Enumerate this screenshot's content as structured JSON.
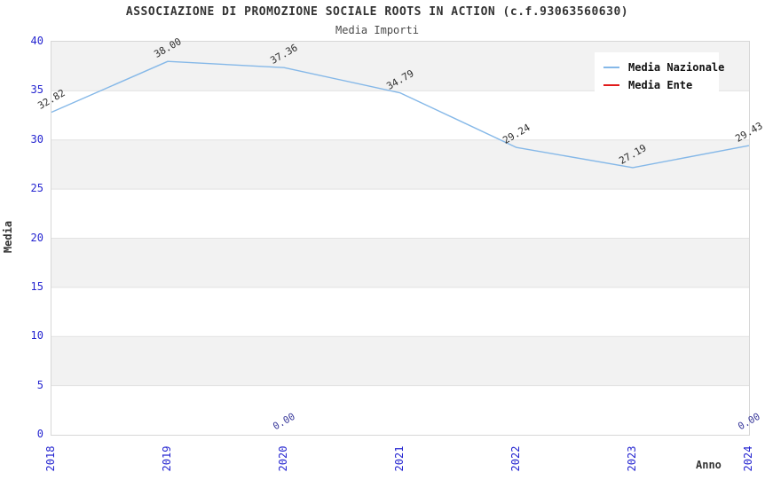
{
  "header": {
    "title": "ASSOCIAZIONE DI PROMOZIONE SOCIALE ROOTS IN ACTION (c.f.93063560630)",
    "subtitle": "Media Importi"
  },
  "chart_data": {
    "type": "line",
    "title": "ASSOCIAZIONE DI PROMOZIONE SOCIALE ROOTS IN ACTION (c.f.93063560630)",
    "subtitle": "Media Importi",
    "xlabel": "Anno",
    "ylabel": "Media",
    "categories": [
      "2018",
      "2019",
      "2020",
      "2021",
      "2022",
      "2023",
      "2024"
    ],
    "yticks": [
      0,
      5,
      10,
      15,
      20,
      25,
      30,
      35,
      40
    ],
    "ylim": [
      0,
      40
    ],
    "grid": "horizontal-bands",
    "legend_position": "top-right",
    "series": [
      {
        "name": "Media Nazionale",
        "color": "#85b8e8",
        "label_color": "#2e2e2e",
        "draw_line": true,
        "values": [
          32.82,
          38.0,
          37.36,
          34.79,
          29.24,
          27.19,
          29.43
        ],
        "labels": [
          "32.82",
          "38.00",
          "37.36",
          "34.79",
          "29.24",
          "27.19",
          "29.43"
        ]
      },
      {
        "name": "Media Ente",
        "color": "#e11b1b",
        "label_color": "#38389a",
        "draw_line": false,
        "values": [
          null,
          null,
          0.0,
          null,
          null,
          null,
          0.0
        ],
        "labels": [
          null,
          null,
          "0.00",
          null,
          null,
          null,
          "0.00"
        ]
      }
    ],
    "style": {
      "band_color": "#f2f2f2",
      "band_alt_color": "#ffffff",
      "gridline_color": "#e2e2e2",
      "tick_color": "#2424d0",
      "plot_border_color": "#d7d7d7"
    }
  }
}
